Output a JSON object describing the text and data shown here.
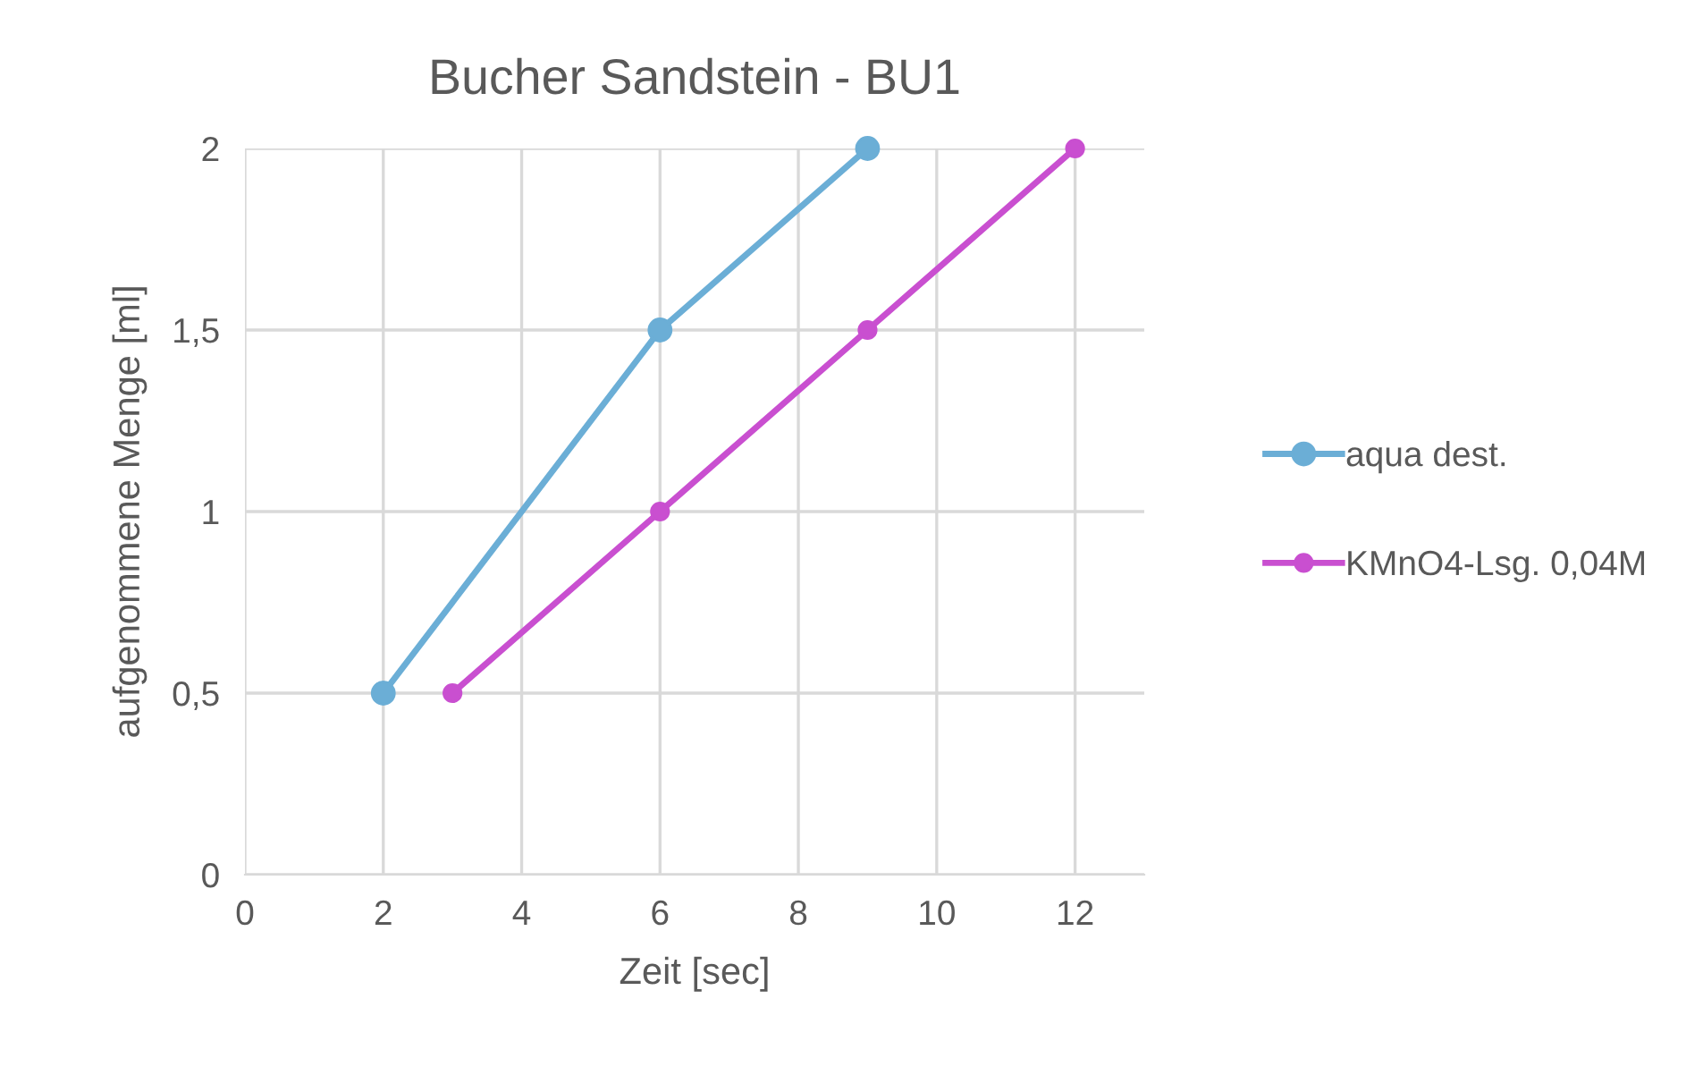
{
  "chart_data": {
    "type": "line",
    "title": "Bucher Sandstein - BU1",
    "xlabel": "Zeit [sec]",
    "ylabel": "aufgenommene Menge [ml]",
    "series": [
      {
        "name": "aqua dest.",
        "color": "#6baed6",
        "x": [
          2,
          6,
          9
        ],
        "values": [
          0.5,
          1.5,
          2
        ]
      },
      {
        "name": "KMnO4-Lsg. 0,04M",
        "color": "#c94fd0",
        "x": [
          3,
          6,
          9,
          12
        ],
        "values": [
          0.5,
          1,
          1.5,
          2
        ]
      }
    ],
    "xlim": [
      0,
      13
    ],
    "xticks": [
      0,
      2,
      4,
      6,
      8,
      10,
      12
    ],
    "ylim": [
      0,
      2
    ],
    "yticks": [
      0,
      {
        "value": 0.5,
        "label": "0,5"
      },
      1,
      {
        "value": 1.5,
        "label": "1,5"
      },
      2
    ],
    "grid": true,
    "legend": "right",
    "marker": "circle",
    "line_style": "solid"
  }
}
